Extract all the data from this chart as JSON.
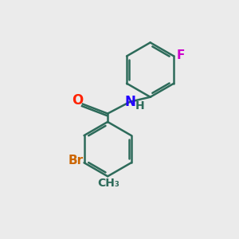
{
  "background_color": "#ebebeb",
  "bond_color": "#2d6b5a",
  "bond_width": 1.8,
  "atom_colors": {
    "O": "#ff2200",
    "N": "#2200ff",
    "Br": "#cc6600",
    "F": "#cc00cc",
    "C": "#2d6b5a",
    "H": "#2d6b5a"
  },
  "font_size": 11
}
